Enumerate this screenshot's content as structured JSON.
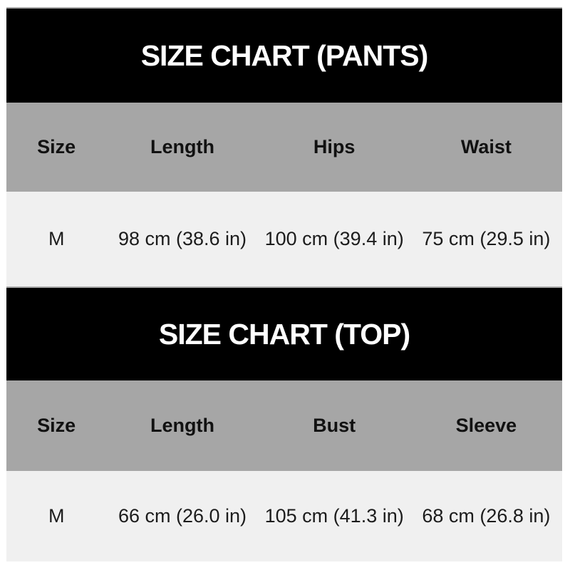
{
  "chart_data": [
    {
      "type": "table",
      "title": "SIZE CHART (PANTS)",
      "columns": [
        "Size",
        "Length",
        "Hips",
        "Waist"
      ],
      "rows": [
        [
          "M",
          "98 cm (38.6 in)",
          "100 cm (39.4 in)",
          "75 cm (29.5 in)"
        ]
      ]
    },
    {
      "type": "table",
      "title": "SIZE CHART (TOP)",
      "columns": [
        "Size",
        "Length",
        "Bust",
        "Sleeve"
      ],
      "rows": [
        [
          "M",
          "66 cm (26.0 in)",
          "105 cm (41.3 in)",
          "68 cm (26.8 in)"
        ]
      ]
    }
  ],
  "colors": {
    "page_background": "#ffffff",
    "banner_background": "#000000",
    "banner_text": "#ffffff",
    "banner_top_line": "#ababab",
    "header_row_background": "#a6a6a6",
    "header_row_text": "#111111",
    "data_row_background": "#f0f0f0",
    "data_row_text": "#1c1c1c"
  }
}
